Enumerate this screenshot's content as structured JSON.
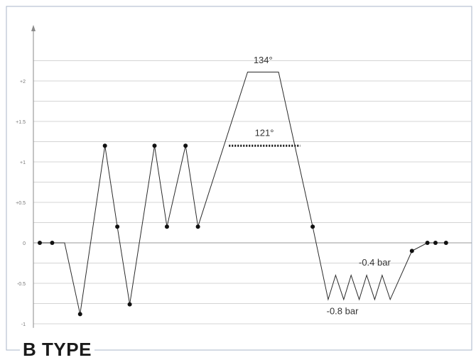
{
  "chart_data": {
    "type": "line",
    "title": "B TYPE",
    "xlabel": "",
    "ylabel": "",
    "ylim": [
      -1.1,
      2.55
    ],
    "y_ticks": [
      {
        "value": 2,
        "label": "+2"
      },
      {
        "value": 1.5,
        "label": "+1.5"
      },
      {
        "value": 1,
        "label": "+1"
      },
      {
        "value": 0.5,
        "label": "+0.5"
      },
      {
        "value": 0,
        "label": "0"
      },
      {
        "value": -0.5,
        "label": "-0.5"
      },
      {
        "value": -1,
        "label": "-1"
      }
    ],
    "grid": true,
    "series": [
      {
        "points": [
          {
            "x": 0,
            "y": 0,
            "marker": true
          },
          {
            "x": 2,
            "y": 0,
            "marker": true
          },
          {
            "x": 4,
            "y": 0,
            "marker": false
          },
          {
            "x": 6.5,
            "y": -0.88,
            "marker": true
          },
          {
            "x": 10.5,
            "y": 1.2,
            "marker": true
          },
          {
            "x": 12.5,
            "y": 0.2,
            "marker": true
          },
          {
            "x": 14.5,
            "y": -0.76,
            "marker": true
          },
          {
            "x": 18.5,
            "y": 1.2,
            "marker": true
          },
          {
            "x": 20.5,
            "y": 0.2,
            "marker": true
          },
          {
            "x": 23.5,
            "y": 1.2,
            "marker": true
          },
          {
            "x": 25.5,
            "y": 0.2,
            "marker": true
          },
          {
            "x": 33.5,
            "y": 2.11,
            "marker": false
          },
          {
            "x": 38.5,
            "y": 2.11,
            "marker": false
          },
          {
            "x": 44,
            "y": 0.2,
            "marker": true
          },
          {
            "x": 46.5,
            "y": -0.7,
            "marker": false
          },
          {
            "x": 47.7,
            "y": -0.4,
            "marker": false
          },
          {
            "x": 49,
            "y": -0.7,
            "marker": false
          },
          {
            "x": 50.2,
            "y": -0.4,
            "marker": false
          },
          {
            "x": 51.5,
            "y": -0.7,
            "marker": false
          },
          {
            "x": 52.7,
            "y": -0.4,
            "marker": false
          },
          {
            "x": 54,
            "y": -0.7,
            "marker": false
          },
          {
            "x": 55.2,
            "y": -0.4,
            "marker": false
          },
          {
            "x": 56.5,
            "y": -0.7,
            "marker": false
          },
          {
            "x": 60,
            "y": -0.1,
            "marker": true
          },
          {
            "x": 62.5,
            "y": 0,
            "marker": true
          },
          {
            "x": 63.8,
            "y": 0,
            "marker": true
          },
          {
            "x": 65.5,
            "y": 0,
            "marker": true
          }
        ]
      }
    ],
    "reference_line": {
      "y": 1.2,
      "x_start": 30.5,
      "x_end": 42,
      "style": "dotted"
    },
    "annotations": [
      {
        "text": "134°",
        "x": 36,
        "y": 2.22
      },
      {
        "text": "121°",
        "x": 36.2,
        "y": 1.32
      },
      {
        "text": "-0.4 bar",
        "x": 54,
        "y": -0.28
      },
      {
        "text": "-0.8 bar",
        "x": 48.8,
        "y": -0.88
      }
    ]
  }
}
